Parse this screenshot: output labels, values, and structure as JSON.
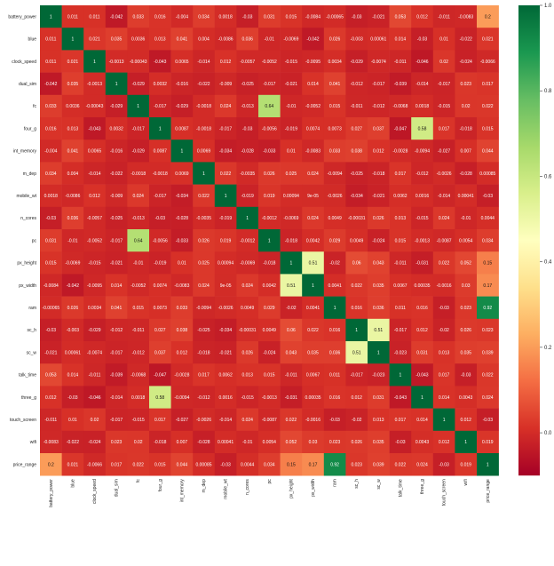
{
  "chart_data": {
    "type": "heatmap",
    "title": "",
    "xlabel": "",
    "ylabel": "",
    "colormap": "RdYlGn",
    "vmin": -0.1,
    "vmax": 1.0,
    "colorbar_ticks": [
      "1.0",
      "0.8",
      "0.6",
      "0.4",
      "0.2",
      "0.0"
    ],
    "colorbar_tick_values": [
      1.0,
      0.8,
      0.6,
      0.4,
      0.2,
      0.0
    ],
    "labels": [
      "battery_power",
      "blue",
      "clock_speed",
      "dual_sim",
      "fc",
      "four_g",
      "int_memory",
      "m_dep",
      "mobile_wt",
      "n_cores",
      "pc",
      "px_height",
      "px_width",
      "ram",
      "sc_h",
      "sc_w",
      "talk_time",
      "three_g",
      "touch_screen",
      "wifi",
      "price_range"
    ],
    "values": [
      [
        "1",
        "0.011",
        "0.011",
        "-0.042",
        "0.033",
        "0.016",
        "-0.004",
        "0.034",
        "0.0018",
        "-0.03",
        "0.031",
        "0.015",
        "-0.0084",
        "-0.00065",
        "-0.03",
        "-0.021",
        "0.053",
        "0.012",
        "-0.011",
        "-0.0083",
        "0.2"
      ],
      [
        "0.011",
        "1",
        "0.021",
        "0.035",
        "0.0036",
        "0.013",
        "0.041",
        "0.004",
        "-0.0086",
        "0.036",
        "-0.01",
        "-0.0069",
        "-0.042",
        "0.026",
        "-0.003",
        "0.00061",
        "0.014",
        "-0.03",
        "0.01",
        "-0.022",
        "0.021"
      ],
      [
        "0.011",
        "0.021",
        "1",
        "-0.0013",
        "-0.00043",
        "-0.043",
        "0.0065",
        "-0.014",
        "0.012",
        "-0.0057",
        "-0.0052",
        "-0.015",
        "-0.0095",
        "0.0034",
        "-0.029",
        "-0.0074",
        "-0.011",
        "-0.046",
        "0.02",
        "-0.024",
        "-0.0066"
      ],
      [
        "-0.042",
        "0.035",
        "-0.0013",
        "1",
        "-0.029",
        "0.0032",
        "-0.016",
        "-0.022",
        "-0.009",
        "-0.025",
        "-0.017",
        "-0.021",
        "0.014",
        "0.041",
        "-0.012",
        "-0.017",
        "-0.039",
        "-0.014",
        "-0.017",
        "0.023",
        "0.017"
      ],
      [
        "0.033",
        "0.0036",
        "-0.00043",
        "-0.029",
        "1",
        "-0.017",
        "-0.029",
        "-0.0018",
        "0.024",
        "-0.013",
        "0.64",
        "-0.01",
        "-0.0052",
        "0.015",
        "-0.011",
        "-0.012",
        "-0.0068",
        "0.0018",
        "-0.015",
        "0.02",
        "0.022"
      ],
      [
        "0.016",
        "0.013",
        "-0.043",
        "0.0032",
        "-0.017",
        "1",
        "0.0087",
        "-0.0018",
        "-0.017",
        "-0.03",
        "-0.0056",
        "-0.019",
        "0.0074",
        "0.0073",
        "0.027",
        "0.037",
        "-0.047",
        "0.58",
        "0.017",
        "-0.018",
        "0.015"
      ],
      [
        "-0.004",
        "0.041",
        "0.0065",
        "-0.016",
        "-0.029",
        "0.0087",
        "1",
        "0.0069",
        "-0.034",
        "-0.028",
        "-0.033",
        "0.01",
        "-0.0083",
        "0.033",
        "0.038",
        "0.012",
        "-0.0028",
        "-0.0094",
        "-0.027",
        "0.007",
        "0.044"
      ],
      [
        "0.034",
        "0.004",
        "-0.014",
        "-0.022",
        "-0.0018",
        "-0.0018",
        "0.0069",
        "1",
        "0.022",
        "-0.0035",
        "0.026",
        "0.025",
        "0.024",
        "-0.0094",
        "-0.025",
        "-0.018",
        "0.017",
        "-0.012",
        "-0.0026",
        "-0.028",
        "0.00085"
      ],
      [
        "0.0018",
        "-0.0086",
        "0.012",
        "-0.009",
        "0.024",
        "-0.017",
        "-0.034",
        "0.022",
        "1",
        "-0.019",
        "0.019",
        "0.00094",
        "9e-05",
        "-0.0026",
        "-0.034",
        "-0.021",
        "0.0062",
        "0.0016",
        "-0.014",
        "0.00041",
        "-0.03"
      ],
      [
        "-0.03",
        "0.036",
        "-0.0057",
        "-0.025",
        "-0.013",
        "-0.03",
        "-0.028",
        "-0.0035",
        "-0.019",
        "1",
        "-0.0012",
        "-0.0069",
        "0.024",
        "0.0049",
        "-0.00031",
        "0.026",
        "0.013",
        "-0.015",
        "0.024",
        "-0.01",
        "0.0044"
      ],
      [
        "0.031",
        "-0.01",
        "-0.0052",
        "-0.017",
        "0.64",
        "-0.0056",
        "-0.033",
        "0.026",
        "0.019",
        "-0.0012",
        "1",
        "-0.018",
        "0.0042",
        "0.029",
        "0.0049",
        "-0.024",
        "0.015",
        "-0.0013",
        "-0.0087",
        "0.0054",
        "0.034"
      ],
      [
        "0.015",
        "-0.0069",
        "-0.015",
        "-0.021",
        "-0.01",
        "-0.019",
        "0.01",
        "0.025",
        "0.00094",
        "-0.0069",
        "-0.018",
        "1",
        "0.51",
        "-0.02",
        "0.06",
        "0.043",
        "-0.011",
        "-0.031",
        "0.022",
        "0.052",
        "0.15"
      ],
      [
        "-0.0084",
        "-0.042",
        "-0.0095",
        "0.014",
        "-0.0052",
        "0.0074",
        "-0.0083",
        "0.024",
        "9e-05",
        "0.024",
        "0.0042",
        "0.51",
        "1",
        "0.0041",
        "0.022",
        "0.035",
        "0.0067",
        "0.00035",
        "-0.0016",
        "0.03",
        "0.17"
      ],
      [
        "-0.00065",
        "0.026",
        "0.0034",
        "0.041",
        "0.015",
        "0.0073",
        "0.033",
        "-0.0094",
        "-0.0026",
        "0.0049",
        "0.029",
        "-0.02",
        "0.0041",
        "1",
        "0.016",
        "0.036",
        "0.011",
        "0.016",
        "-0.03",
        "0.023",
        "0.92"
      ],
      [
        "-0.03",
        "-0.003",
        "-0.029",
        "-0.012",
        "-0.011",
        "0.027",
        "0.038",
        "-0.025",
        "-0.034",
        "-0.00031",
        "0.0049",
        "0.06",
        "0.022",
        "0.016",
        "1",
        "0.51",
        "-0.017",
        "0.012",
        "-0.02",
        "0.026",
        "0.023"
      ],
      [
        "-0.021",
        "0.00061",
        "-0.0074",
        "-0.017",
        "-0.012",
        "0.037",
        "0.012",
        "-0.018",
        "-0.021",
        "0.026",
        "-0.024",
        "0.043",
        "0.035",
        "0.036",
        "0.51",
        "1",
        "-0.023",
        "0.031",
        "0.013",
        "0.035",
        "0.039"
      ],
      [
        "0.053",
        "0.014",
        "-0.011",
        "-0.039",
        "-0.0068",
        "-0.047",
        "-0.0028",
        "0.017",
        "0.0062",
        "0.013",
        "0.015",
        "-0.011",
        "0.0067",
        "0.011",
        "-0.017",
        "-0.023",
        "1",
        "-0.043",
        "0.017",
        "-0.03",
        "0.022"
      ],
      [
        "0.012",
        "-0.03",
        "-0.046",
        "-0.014",
        "0.0018",
        "0.58",
        "-0.0094",
        "-0.012",
        "0.0016",
        "-0.015",
        "-0.0013",
        "-0.031",
        "0.00035",
        "0.016",
        "0.012",
        "0.031",
        "-0.043",
        "1",
        "0.014",
        "0.0043",
        "0.024"
      ],
      [
        "-0.011",
        "0.01",
        "0.02",
        "-0.017",
        "-0.015",
        "0.017",
        "-0.027",
        "-0.0026",
        "-0.014",
        "0.024",
        "-0.0087",
        "0.022",
        "-0.0016",
        "-0.03",
        "-0.02",
        "0.013",
        "0.017",
        "0.014",
        "1",
        "0.012",
        "-0.03"
      ],
      [
        "-0.0083",
        "-0.022",
        "-0.024",
        "0.023",
        "0.02",
        "-0.018",
        "0.007",
        "-0.028",
        "0.00041",
        "-0.01",
        "0.0054",
        "0.052",
        "0.03",
        "0.023",
        "0.026",
        "0.035",
        "-0.03",
        "0.0043",
        "0.012",
        "1",
        "0.019"
      ],
      [
        "0.2",
        "0.021",
        "-0.0066",
        "0.017",
        "0.022",
        "0.015",
        "0.044",
        "0.00085",
        "-0.03",
        "0.0044",
        "0.034",
        "0.15",
        "0.17",
        "0.92",
        "0.023",
        "0.039",
        "0.022",
        "0.024",
        "-0.03",
        "0.019",
        "1"
      ]
    ]
  }
}
